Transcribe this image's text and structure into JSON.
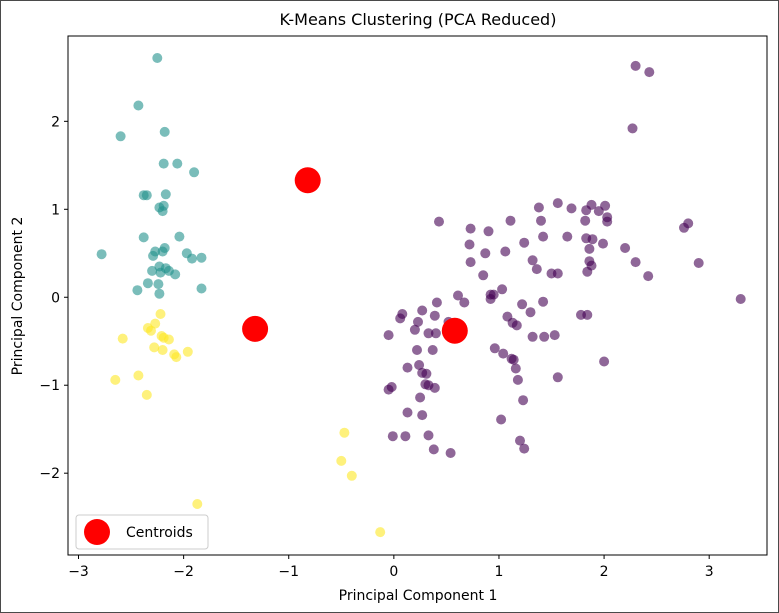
{
  "chart_data": {
    "type": "scatter",
    "title": "K-Means Clustering (PCA Reduced)",
    "xlabel": "Principal Component 1",
    "ylabel": "Principal Component 2",
    "xlim": [
      -3.1,
      3.55
    ],
    "ylim": [
      -2.93,
      2.97
    ],
    "xticks": [
      -3,
      -2,
      -1,
      0,
      1,
      2,
      3
    ],
    "yticks": [
      -2,
      -1,
      0,
      1,
      2
    ],
    "xtick_labels": [
      "−3",
      "−2",
      "−1",
      "0",
      "1",
      "2",
      "3"
    ],
    "ytick_labels": [
      "−2",
      "−1",
      "0",
      "1",
      "2"
    ],
    "grid": false,
    "legend": {
      "position": "lower-left",
      "entries": [
        {
          "label": "Centroids",
          "color": "#ff0000"
        }
      ]
    },
    "colors": {
      "cluster0": "#440154",
      "cluster1": "#21918c",
      "cluster2": "#fde725",
      "centroid": "#ff0000"
    },
    "series": [
      {
        "cluster": 0,
        "color": "#440154",
        "points": [
          [
            2.3,
            2.63
          ],
          [
            2.43,
            2.56
          ],
          [
            2.27,
            1.92
          ],
          [
            1.88,
            1.05
          ],
          [
            2.01,
            1.04
          ],
          [
            1.83,
            0.99
          ],
          [
            1.56,
            1.07
          ],
          [
            1.38,
            1.02
          ],
          [
            1.69,
            1.01
          ],
          [
            1.95,
            0.98
          ],
          [
            2.03,
            0.91
          ],
          [
            2.03,
            0.86
          ],
          [
            1.11,
            0.87
          ],
          [
            1.4,
            0.87
          ],
          [
            1.82,
            0.87
          ],
          [
            2.76,
            0.79
          ],
          [
            2.8,
            0.84
          ],
          [
            0.43,
            0.86
          ],
          [
            0.73,
            0.78
          ],
          [
            0.9,
            0.75
          ],
          [
            1.24,
            0.62
          ],
          [
            1.42,
            0.69
          ],
          [
            1.65,
            0.69
          ],
          [
            1.83,
            0.67
          ],
          [
            1.89,
            0.66
          ],
          [
            1.99,
            0.61
          ],
          [
            2.2,
            0.56
          ],
          [
            1.86,
            0.55
          ],
          [
            1.06,
            0.52
          ],
          [
            0.87,
            0.5
          ],
          [
            0.72,
            0.6
          ],
          [
            0.73,
            0.4
          ],
          [
            1.32,
            0.42
          ],
          [
            1.86,
            0.41
          ],
          [
            1.88,
            0.36
          ],
          [
            2.3,
            0.4
          ],
          [
            2.9,
            0.39
          ],
          [
            1.5,
            0.27
          ],
          [
            1.56,
            0.27
          ],
          [
            0.85,
            0.25
          ],
          [
            1.36,
            0.32
          ],
          [
            1.84,
            0.29
          ],
          [
            2.42,
            0.24
          ],
          [
            1.03,
            0.09
          ],
          [
            0.92,
            0.03
          ],
          [
            0.95,
            0.03
          ],
          [
            0.92,
            -0.02
          ],
          [
            0.61,
            0.02
          ],
          [
            0.67,
            -0.06
          ],
          [
            0.41,
            -0.06
          ],
          [
            0.27,
            -0.15
          ],
          [
            0.08,
            -0.19
          ],
          [
            0.06,
            -0.24
          ],
          [
            0.23,
            -0.28
          ],
          [
            0.39,
            -0.21
          ],
          [
            0.52,
            -0.28
          ],
          [
            0.58,
            -0.36
          ],
          [
            1.08,
            -0.22
          ],
          [
            1.13,
            -0.29
          ],
          [
            1.17,
            -0.32
          ],
          [
            1.22,
            -0.08
          ],
          [
            1.3,
            -0.17
          ],
          [
            1.42,
            -0.05
          ],
          [
            1.78,
            -0.2
          ],
          [
            1.84,
            -0.2
          ],
          [
            3.3,
            -0.02
          ],
          [
            -0.05,
            -0.43
          ],
          [
            0.2,
            -0.37
          ],
          [
            0.33,
            -0.41
          ],
          [
            0.4,
            -0.41
          ],
          [
            1.32,
            -0.45
          ],
          [
            1.43,
            -0.45
          ],
          [
            1.53,
            -0.43
          ],
          [
            0.22,
            -0.6
          ],
          [
            0.37,
            -0.6
          ],
          [
            0.96,
            -0.58
          ],
          [
            1.04,
            -0.64
          ],
          [
            1.12,
            -0.7
          ],
          [
            1.14,
            -0.71
          ],
          [
            0.13,
            -0.8
          ],
          [
            0.24,
            -0.77
          ],
          [
            0.27,
            -0.86
          ],
          [
            0.31,
            -0.87
          ],
          [
            1.16,
            -0.81
          ],
          [
            1.18,
            -0.94
          ],
          [
            1.56,
            -0.91
          ],
          [
            2.0,
            -0.73
          ],
          [
            0.3,
            -0.99
          ],
          [
            0.33,
            -1.0
          ],
          [
            0.25,
            -1.14
          ],
          [
            0.39,
            -1.03
          ],
          [
            -0.05,
            -1.05
          ],
          [
            -0.02,
            -1.02
          ],
          [
            1.23,
            -1.17
          ],
          [
            1.02,
            -1.39
          ],
          [
            0.13,
            -1.31
          ],
          [
            0.27,
            -1.34
          ],
          [
            -0.01,
            -1.58
          ],
          [
            0.11,
            -1.58
          ],
          [
            0.33,
            -1.57
          ],
          [
            0.38,
            -1.73
          ],
          [
            0.54,
            -1.77
          ],
          [
            1.2,
            -1.63
          ],
          [
            1.24,
            -1.72
          ]
        ]
      },
      {
        "cluster": 1,
        "color": "#21918c",
        "points": [
          [
            -2.25,
            2.72
          ],
          [
            -2.43,
            2.18
          ],
          [
            -2.6,
            1.83
          ],
          [
            -2.18,
            1.88
          ],
          [
            -2.19,
            1.52
          ],
          [
            -2.06,
            1.52
          ],
          [
            -1.9,
            1.42
          ],
          [
            -2.38,
            1.16
          ],
          [
            -2.35,
            1.16
          ],
          [
            -2.17,
            1.17
          ],
          [
            -2.23,
            1.02
          ],
          [
            -2.2,
            0.98
          ],
          [
            -2.19,
            1.04
          ],
          [
            -2.38,
            0.68
          ],
          [
            -2.04,
            0.69
          ],
          [
            -2.78,
            0.49
          ],
          [
            -2.29,
            0.47
          ],
          [
            -2.27,
            0.52
          ],
          [
            -2.2,
            0.52
          ],
          [
            -2.18,
            0.56
          ],
          [
            -1.97,
            0.5
          ],
          [
            -1.92,
            0.44
          ],
          [
            -1.83,
            0.45
          ],
          [
            -2.3,
            0.3
          ],
          [
            -2.22,
            0.28
          ],
          [
            -2.23,
            0.35
          ],
          [
            -2.17,
            0.33
          ],
          [
            -2.14,
            0.3
          ],
          [
            -2.08,
            0.26
          ],
          [
            -2.34,
            0.16
          ],
          [
            -2.24,
            0.15
          ],
          [
            -2.44,
            0.08
          ],
          [
            -2.23,
            0.04
          ],
          [
            -1.83,
            0.1
          ]
        ]
      },
      {
        "cluster": 2,
        "color": "#fde725",
        "points": [
          [
            -2.22,
            -0.19
          ],
          [
            -2.27,
            -0.3
          ],
          [
            -2.34,
            -0.35
          ],
          [
            -2.31,
            -0.38
          ],
          [
            -2.58,
            -0.47
          ],
          [
            -2.21,
            -0.44
          ],
          [
            -2.19,
            -0.46
          ],
          [
            -2.14,
            -0.48
          ],
          [
            -2.28,
            -0.57
          ],
          [
            -2.2,
            -0.6
          ],
          [
            -2.09,
            -0.65
          ],
          [
            -2.07,
            -0.68
          ],
          [
            -1.96,
            -0.62
          ],
          [
            -2.65,
            -0.94
          ],
          [
            -2.43,
            -0.89
          ],
          [
            -2.35,
            -1.11
          ],
          [
            -1.87,
            -2.35
          ],
          [
            -0.47,
            -1.54
          ],
          [
            -0.5,
            -1.86
          ],
          [
            -0.4,
            -2.03
          ],
          [
            -0.13,
            -2.67
          ]
        ]
      }
    ],
    "centroids": [
      [
        -0.82,
        1.33
      ],
      [
        -1.32,
        -0.36
      ],
      [
        0.58,
        -0.38
      ]
    ]
  }
}
